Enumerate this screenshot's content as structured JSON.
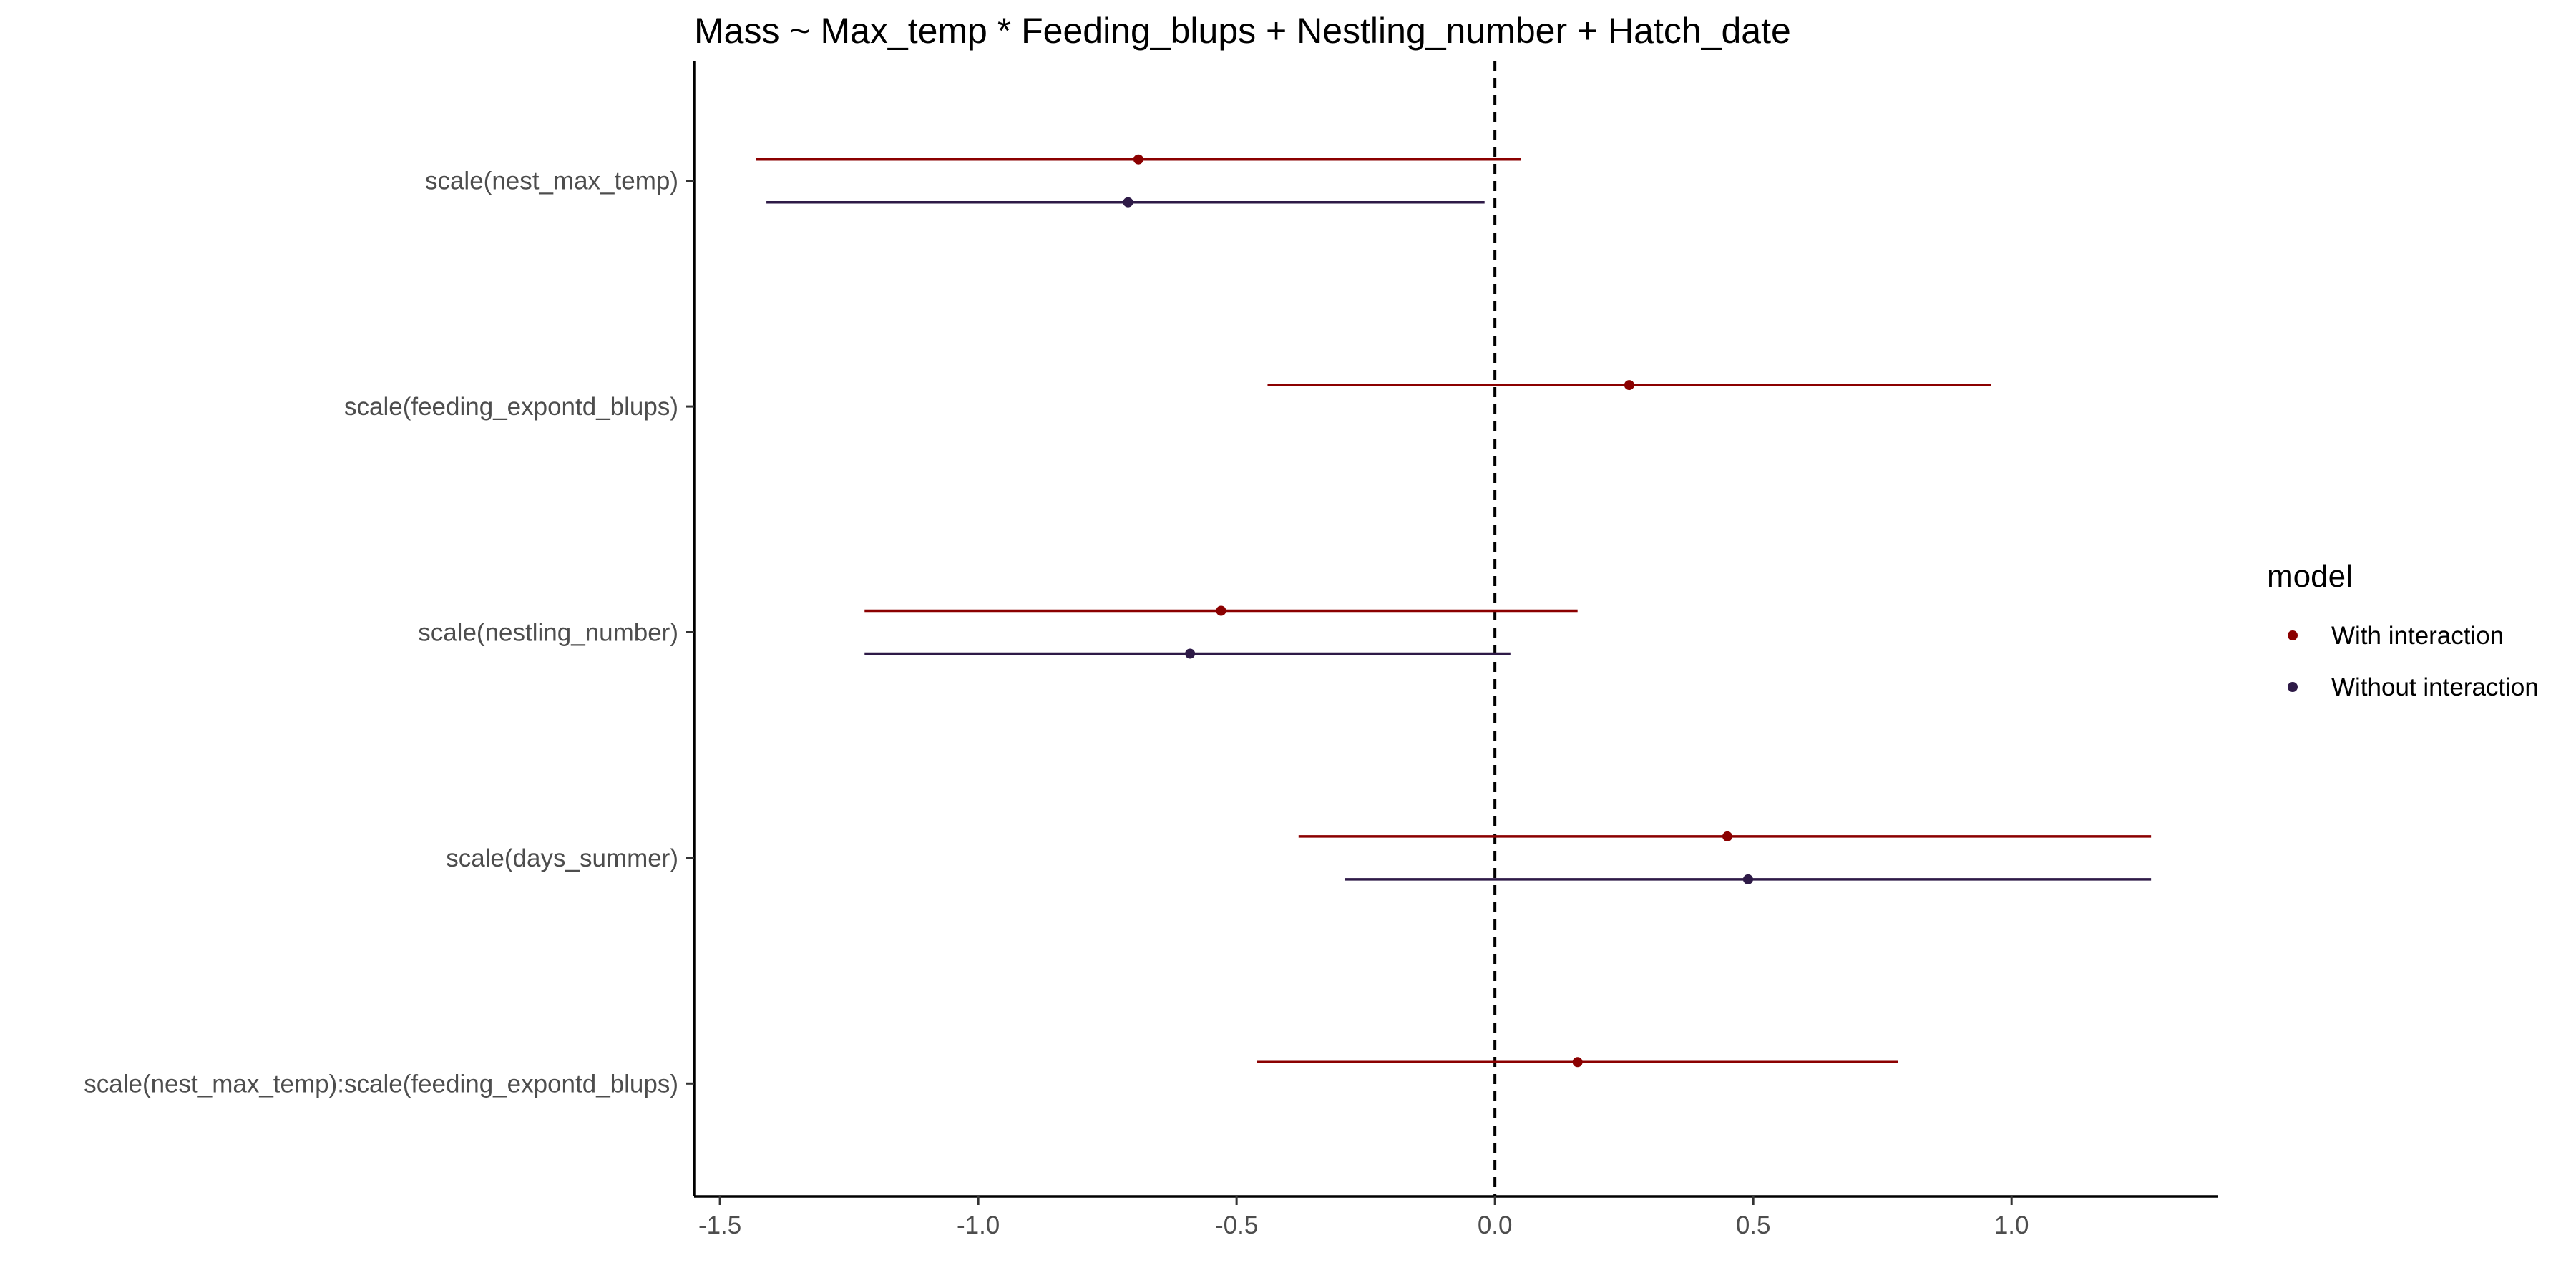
{
  "chart_data": {
    "type": "forest",
    "title": "Mass ~ Max_temp * Feeding_blups + Nestling_number + Hatch_date",
    "xlabel": "",
    "ylabel": "",
    "xlim": [
      -1.55,
      1.4
    ],
    "x_ticks": [
      -1.5,
      -1.0,
      -0.5,
      0.0,
      0.5,
      1.0
    ],
    "x_tick_labels": [
      "-1.5",
      "-1.0",
      "-0.5",
      "0.0",
      "0.5",
      "1.0"
    ],
    "reference_line": 0.0,
    "grid": false,
    "categories": [
      "scale(nest_max_temp)",
      "scale(feeding_expontd_blups)",
      "scale(nestling_number)",
      "scale(days_summer)",
      "scale(nest_max_temp):scale(feeding_expontd_blups)"
    ],
    "legend": {
      "title": "model",
      "position": "right"
    },
    "series": [
      {
        "name": "With interaction",
        "color": "#8b0000",
        "points": [
          {
            "category": "scale(nest_max_temp)",
            "estimate": -0.69,
            "lower": -1.43,
            "upper": 0.05
          },
          {
            "category": "scale(feeding_expontd_blups)",
            "estimate": 0.26,
            "lower": -0.44,
            "upper": 0.96
          },
          {
            "category": "scale(nestling_number)",
            "estimate": -0.53,
            "lower": -1.22,
            "upper": 0.16
          },
          {
            "category": "scale(days_summer)",
            "estimate": 0.45,
            "lower": -0.38,
            "upper": 1.27
          },
          {
            "category": "scale(nest_max_temp):scale(feeding_expontd_blups)",
            "estimate": 0.16,
            "lower": -0.46,
            "upper": 0.78
          }
        ]
      },
      {
        "name": "Without interaction",
        "color": "#2e1a47",
        "points": [
          {
            "category": "scale(nest_max_temp)",
            "estimate": -0.71,
            "lower": -1.41,
            "upper": -0.02
          },
          {
            "category": "scale(nestling_number)",
            "estimate": -0.59,
            "lower": -1.22,
            "upper": 0.03
          },
          {
            "category": "scale(days_summer)",
            "estimate": 0.49,
            "lower": -0.29,
            "upper": 1.27
          }
        ]
      }
    ]
  }
}
